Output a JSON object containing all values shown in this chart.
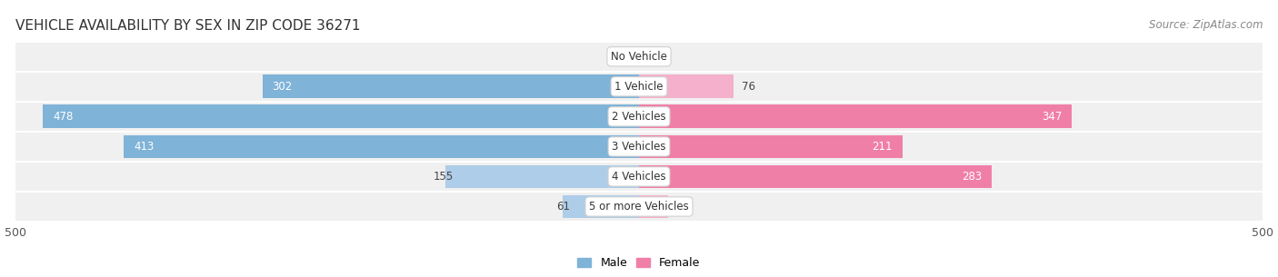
{
  "title": "VEHICLE AVAILABILITY BY SEX IN ZIP CODE 36271",
  "source": "Source: ZipAtlas.com",
  "categories": [
    "No Vehicle",
    "1 Vehicle",
    "2 Vehicles",
    "3 Vehicles",
    "4 Vehicles",
    "5 or more Vehicles"
  ],
  "male_values": [
    0,
    302,
    478,
    413,
    155,
    61
  ],
  "female_values": [
    0,
    76,
    347,
    211,
    283,
    23
  ],
  "male_color": "#7fb3d8",
  "female_color": "#f07fa8",
  "male_color_light": "#aecde8",
  "female_color_light": "#f5b0cb",
  "row_bg_color": "#f0f0f0",
  "row_border_color": "#ffffff",
  "axis_max": 500,
  "title_fontsize": 11,
  "source_fontsize": 8.5,
  "label_fontsize": 8.5,
  "value_fontsize": 8.5,
  "legend_fontsize": 9,
  "axis_label_fontsize": 9
}
